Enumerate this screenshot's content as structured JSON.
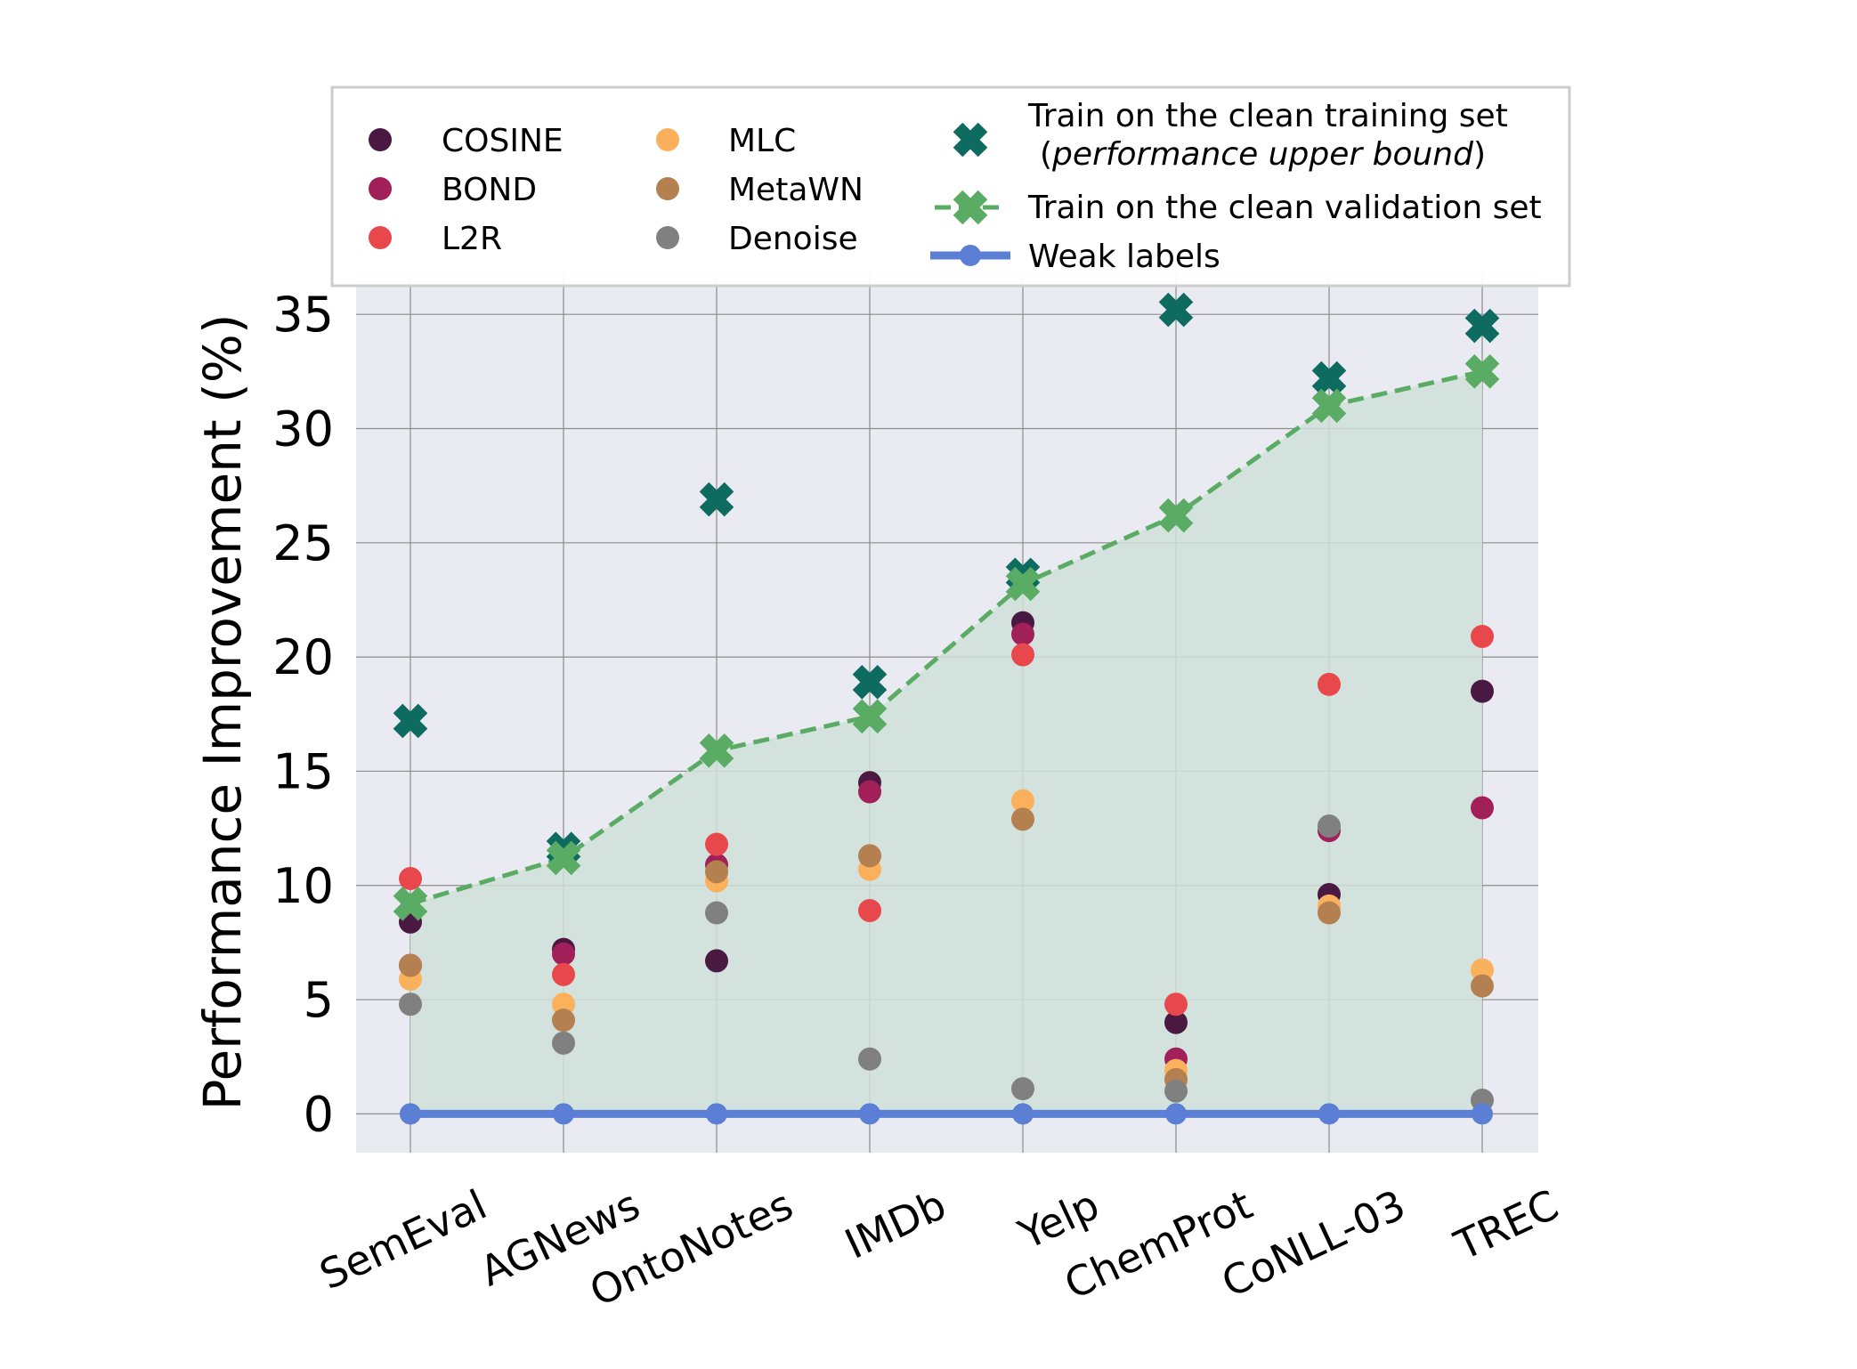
{
  "chart_data": {
    "type": "scatter",
    "title": "",
    "xlabel": "",
    "ylabel": "Performance Improvement (%)",
    "ylim": [
      -1.7,
      36.8
    ],
    "yticks": [
      0,
      5,
      10,
      15,
      20,
      25,
      30,
      35
    ],
    "grid": true,
    "legend_position": "top",
    "categories": [
      "SemEval",
      "AGNews",
      "OntoNotes",
      "IMDb",
      "Yelp",
      "ChemProt",
      "CoNLL-03",
      "TREC"
    ],
    "series": [
      {
        "name": "COSINE",
        "kind": "point",
        "color": "#4a1942",
        "values": [
          8.4,
          7.2,
          6.7,
          14.5,
          21.5,
          4.0,
          9.6,
          18.5
        ]
      },
      {
        "name": "BOND",
        "kind": "point",
        "color": "#a2205a",
        "values": [
          6.5,
          7.0,
          10.9,
          14.1,
          21.0,
          2.4,
          12.4,
          13.4
        ]
      },
      {
        "name": "L2R",
        "kind": "point",
        "color": "#e8484c",
        "values": [
          10.3,
          6.1,
          11.8,
          8.9,
          20.1,
          4.8,
          18.8,
          20.9
        ]
      },
      {
        "name": "MLC",
        "kind": "point",
        "color": "#fbb05c",
        "values": [
          5.9,
          4.8,
          10.2,
          10.7,
          13.7,
          1.9,
          9.1,
          6.3
        ]
      },
      {
        "name": "MetaWN",
        "kind": "point",
        "color": "#b5804f",
        "values": [
          6.5,
          4.1,
          10.6,
          11.3,
          12.9,
          1.5,
          8.8,
          5.6
        ]
      },
      {
        "name": "Denoise",
        "kind": "point",
        "color": "#808080",
        "values": [
          4.8,
          3.1,
          8.8,
          2.4,
          1.1,
          1.0,
          12.6,
          0.6
        ]
      },
      {
        "name": "Train on the clean training set",
        "name_line2_pre": "(",
        "name_line2_em": "performance upper bound",
        "name_line2_post": ")",
        "kind": "x",
        "color": "#0d6b5f",
        "values": [
          17.2,
          11.6,
          26.9,
          18.9,
          23.6,
          35.2,
          32.2,
          34.5
        ]
      },
      {
        "name": "Train on the clean validation set",
        "kind": "x-dashed",
        "color": "#5aab64",
        "fill": "#cfe0d8",
        "values": [
          9.2,
          11.2,
          15.9,
          17.4,
          23.2,
          26.2,
          31.0,
          32.5
        ]
      },
      {
        "name": "Weak labels",
        "kind": "line",
        "color": "#5b7fd4",
        "values": [
          0,
          0,
          0,
          0,
          0,
          0,
          0,
          0
        ]
      }
    ]
  }
}
